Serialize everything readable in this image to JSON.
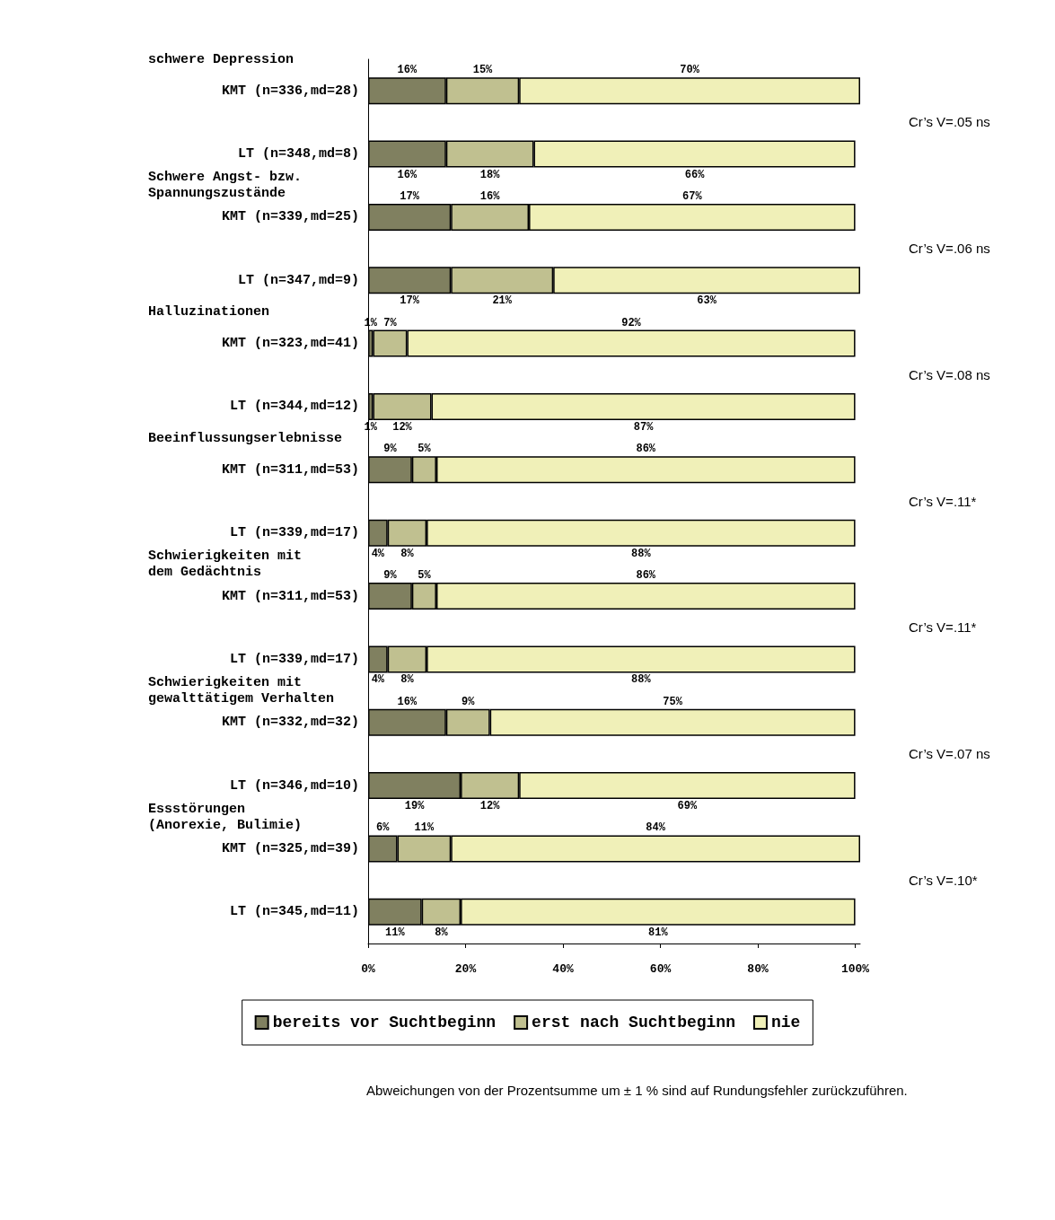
{
  "chart_data": {
    "type": "bar",
    "orientation": "horizontal",
    "stacked": true,
    "categories": [
      "KMT (n=336,md=28)",
      "LT (n=348,md=8)",
      "KMT (n=339,md=25)",
      "LT (n=347,md=9)",
      "KMT (n=323,md=41)",
      "LT (n=344,md=12)",
      "KMT (n=311,md=53)",
      "LT (n=339,md=17)",
      "KMT (n=311,md=53)",
      "LT (n=339,md=17)",
      "KMT (n=332,md=32)",
      "LT (n=346,md=10)",
      "KMT (n=325,md=39)",
      "LT (n=345,md=11)"
    ],
    "series": [
      {
        "name": "bereits vor Suchtbeginn",
        "color": "#808060",
        "values": [
          16,
          16,
          17,
          17,
          1,
          1,
          9,
          4,
          9,
          4,
          16,
          19,
          6,
          11
        ],
        "value_labels": [
          "16%",
          "16%",
          "17%",
          "17%",
          "1%",
          "1%",
          "9%",
          "4%",
          "9%",
          "4%",
          "16%",
          "19%",
          "6%",
          "11%"
        ]
      },
      {
        "name": "erst nach Suchtbeginn",
        "color": "#c0c090",
        "values": [
          15,
          18,
          16,
          21,
          7,
          12,
          5,
          8,
          5,
          8,
          9,
          12,
          11,
          8
        ],
        "value_labels": [
          "15%",
          "18%",
          "16%",
          "21%",
          "7%",
          "12%",
          "5%",
          "8%",
          "5%",
          "8%",
          "9%",
          "12%",
          "11%",
          "8%"
        ]
      },
      {
        "name": "nie",
        "color": "#f0f0b8",
        "values": [
          70,
          66,
          67,
          63,
          92,
          87,
          86,
          88,
          86,
          88,
          75,
          69,
          84,
          81
        ],
        "value_labels": [
          "70%",
          "66%",
          "67%",
          "63%",
          "92%",
          "87%",
          "86%",
          "88%",
          "86%",
          "88%",
          "75%",
          "69%",
          "84%",
          "81%"
        ]
      }
    ],
    "xlim": [
      0,
      101
    ],
    "xticks": [
      {
        "value": 0,
        "label": "0%"
      },
      {
        "value": 20,
        "label": "20%"
      },
      {
        "value": 40,
        "label": "40%"
      },
      {
        "value": 60,
        "label": "60%"
      },
      {
        "value": 80,
        "label": "80%"
      },
      {
        "value": 100,
        "label": "100%"
      }
    ],
    "grid": false,
    "legend": "bottom",
    "annotations": [
      "schwere Depression",
      "Schwere Angst- bzw.\nSpannungszustände",
      "Halluzinationen",
      "Beeinflussungserlebnisse",
      "Schwierigkeiten mit\ndem Gedächtnis",
      "Schwierigkeiten mit\ngewalttätigem Verhalten",
      "Essstörungen\n(Anorexie, Bulimie)",
      "Cr’s V=.05 ns",
      "Cr’s V=.06 ns",
      "Cr’s V=.08 ns",
      "Cr’s V=.11*",
      "Cr’s V=.11*",
      "Cr’s V=.07 ns",
      "Cr’s V=.10*",
      "Abweichungen von der Prozentsumme um ± 1 % sind auf Rundungsfehler zurückzuführen."
    ]
  }
}
